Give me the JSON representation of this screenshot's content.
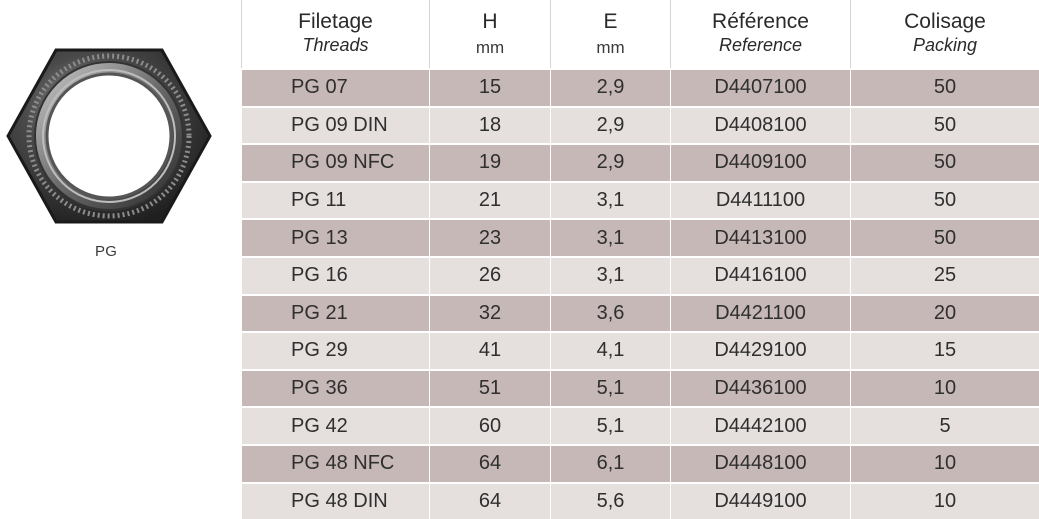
{
  "product": {
    "label": "PG",
    "image_icon": "hex-lock-nut-photo"
  },
  "table": {
    "headers": [
      {
        "main": "Filetage",
        "sub": "Threads",
        "unit": ""
      },
      {
        "main": "H",
        "sub": "",
        "unit": "mm"
      },
      {
        "main": "E",
        "sub": "",
        "unit": "mm"
      },
      {
        "main": "Référence",
        "sub": "Reference",
        "unit": ""
      },
      {
        "main": "Colisage",
        "sub": "Packing",
        "unit": ""
      }
    ],
    "rows": [
      [
        "PG 07",
        "15",
        "2,9",
        "D4407100",
        "50"
      ],
      [
        "PG 09 DIN",
        "18",
        "2,9",
        "D4408100",
        "50"
      ],
      [
        "PG 09 NFC",
        "19",
        "2,9",
        "D4409100",
        "50"
      ],
      [
        "PG 11",
        "21",
        "3,1",
        "D4411100",
        "50"
      ],
      [
        "PG 13",
        "23",
        "3,1",
        "D4413100",
        "50"
      ],
      [
        "PG 16",
        "26",
        "3,1",
        "D4416100",
        "25"
      ],
      [
        "PG 21",
        "32",
        "3,6",
        "D4421100",
        "20"
      ],
      [
        "PG 29",
        "41",
        "4,1",
        "D4429100",
        "15"
      ],
      [
        "PG 36",
        "51",
        "5,1",
        "D4436100",
        "10"
      ],
      [
        "PG 42",
        "60",
        "5,1",
        "D4442100",
        "5"
      ],
      [
        "PG 48 NFC",
        "64",
        "6,1",
        "D4448100",
        "10"
      ],
      [
        "PG 48 DIN",
        "64",
        "5,6",
        "D4449100",
        "10"
      ]
    ]
  },
  "colors": {
    "row_dark": "#c6b8b6",
    "row_light": "#e5e0dd"
  }
}
